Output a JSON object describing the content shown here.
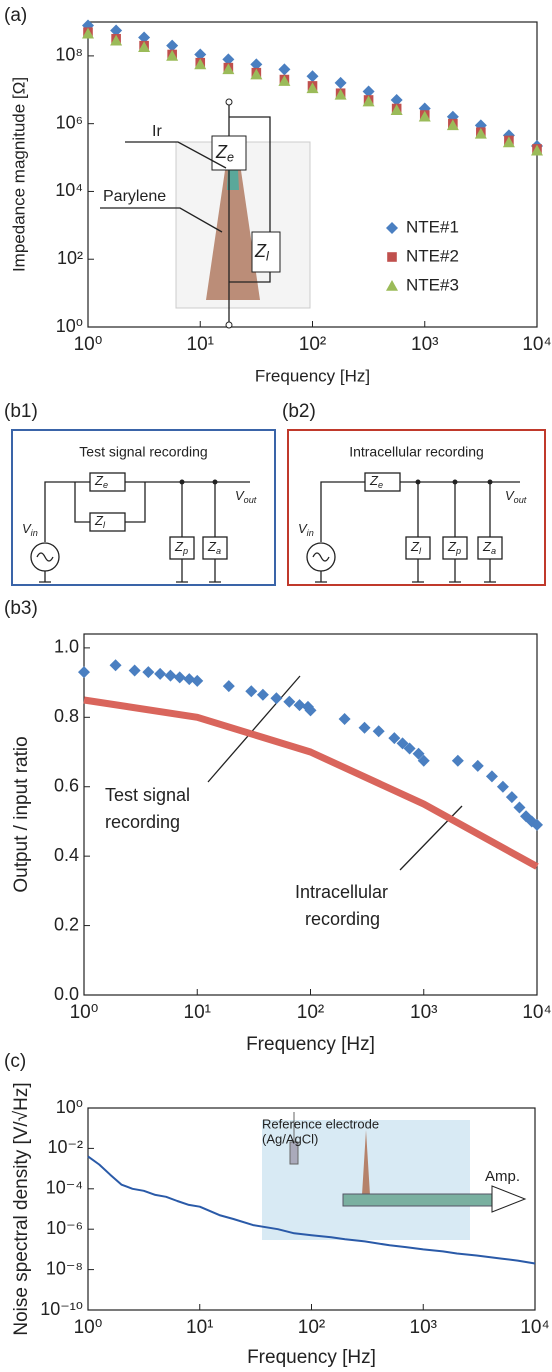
{
  "panel_labels": [
    "(a)",
    "(b1)",
    "(b2)",
    "(b3)",
    "(c)"
  ],
  "chart_data": [
    {
      "type": "scatter",
      "xlabel": "Frequency [Hz]",
      "ylabel": "Impedance magnitude [Ω]",
      "xscale": "log",
      "yscale": "log",
      "xlim": [
        1,
        10000
      ],
      "ylim": [
        1,
        1000000000
      ],
      "xticks": [
        {
          "value": 1,
          "label": "10⁰"
        },
        {
          "value": 10,
          "label": "10¹"
        },
        {
          "value": 100,
          "label": "10²"
        },
        {
          "value": 1000,
          "label": "10³"
        },
        {
          "value": 10000,
          "label": "10⁴"
        }
      ],
      "yticks": [
        {
          "value": 1,
          "label": "10⁰"
        },
        {
          "value": 100,
          "label": "10²"
        },
        {
          "value": 10000,
          "label": "10⁴"
        },
        {
          "value": 1000000,
          "label": "10⁶"
        },
        {
          "value": 100000000,
          "label": "10⁸"
        }
      ],
      "legend": "lower right",
      "x": [
        1,
        1.78,
        3.16,
        5.62,
        10,
        17.8,
        31.6,
        56.2,
        100,
        178,
        316,
        562,
        1000,
        1780,
        3160,
        5620,
        10000
      ],
      "series": [
        {
          "name": "NTE#1",
          "color": "#4a7fc1",
          "marker": "diamond",
          "values": [
            790000000.0,
            560000000.0,
            350000000.0,
            200000000.0,
            110000000.0,
            79000000.0,
            56000000.0,
            40000000.0,
            25000000.0,
            16000000.0,
            8900000.0,
            5000000.0,
            2800000.0,
            1600000.0,
            890000.0,
            450000.0,
            220000.0
          ]
        },
        {
          "name": "NTE#2",
          "color": "#c0504d",
          "marker": "square",
          "values": [
            500000000.0,
            320000000.0,
            200000000.0,
            110000000.0,
            63000000.0,
            45000000.0,
            32000000.0,
            20000000.0,
            13000000.0,
            7900000.0,
            5000000.0,
            2800000.0,
            1800000.0,
            1000000.0,
            560000.0,
            320000.0,
            180000.0
          ]
        },
        {
          "name": "NTE#3",
          "color": "#9bbb59",
          "marker": "triangle",
          "values": [
            450000000.0,
            280000000.0,
            180000000.0,
            100000000.0,
            56000000.0,
            40000000.0,
            28000000.0,
            18000000.0,
            11000000.0,
            7100000.0,
            4500000.0,
            2500000.0,
            1600000.0,
            890000.0,
            500000.0,
            280000.0,
            160000.0
          ]
        }
      ],
      "inset": {
        "ir": "Ir",
        "parylene": "Parylene",
        "ze": {
          "base": "Z",
          "sub": "e"
        },
        "zl": {
          "base": "Z",
          "sub": "l"
        }
      }
    },
    {
      "type": "line",
      "xlabel": "Frequency [Hz]",
      "ylabel": "Output / input ratio",
      "xscale": "log",
      "yscale": "linear",
      "xlim": [
        1,
        10000
      ],
      "ylim": [
        0,
        1.04
      ],
      "xticks": [
        {
          "value": 1,
          "label": "10⁰"
        },
        {
          "value": 10,
          "label": "10¹"
        },
        {
          "value": 100,
          "label": "10²"
        },
        {
          "value": 1000,
          "label": "10³"
        },
        {
          "value": 10000,
          "label": "10⁴"
        }
      ],
      "yticks": [
        {
          "value": 0,
          "label": "0.0"
        },
        0.2,
        0.4,
        0.6,
        0.8,
        {
          "value": 1,
          "label": "1.0"
        }
      ],
      "series": [
        {
          "color": "#4a7fc1",
          "marker": "diamond",
          "x": [
            1,
            1.9,
            2.8,
            3.7,
            4.7,
            5.8,
            7,
            8.5,
            10,
            19,
            30,
            38,
            50,
            65,
            80,
            95,
            100,
            200,
            300,
            400,
            550,
            650,
            750,
            900,
            1000,
            2000,
            3000,
            4000,
            5000,
            6000,
            7000,
            8000,
            9000,
            10000
          ],
          "values": [
            0.93,
            0.95,
            0.935,
            0.93,
            0.925,
            0.92,
            0.915,
            0.91,
            0.905,
            0.89,
            0.875,
            0.865,
            0.855,
            0.845,
            0.835,
            0.83,
            0.82,
            0.795,
            0.77,
            0.76,
            0.74,
            0.725,
            0.71,
            0.695,
            0.675,
            0.675,
            0.66,
            0.63,
            0.6,
            0.57,
            0.54,
            0.515,
            0.5,
            0.49
          ]
        },
        {
          "color": "#d9655c",
          "marker": "line",
          "x": [
            1,
            10,
            100,
            1000,
            10000
          ],
          "values": [
            0.85,
            0.8,
            0.7,
            0.55,
            0.37
          ]
        }
      ],
      "annotations": [
        [
          "Test signal",
          "recording"
        ],
        [
          "Intracellular",
          "recording"
        ]
      ]
    },
    {
      "type": "line",
      "xlabel": "Frequency [Hz]",
      "ylabel": "Noise spectral density [V/√Hz]",
      "xscale": "log",
      "yscale": "log",
      "xlim": [
        1,
        10000
      ],
      "ylim": [
        1e-10,
        1
      ],
      "xticks": [
        {
          "value": 1,
          "label": "10⁰"
        },
        {
          "value": 10,
          "label": "10¹"
        },
        {
          "value": 100,
          "label": "10²"
        },
        {
          "value": 1000,
          "label": "10³"
        },
        {
          "value": 10000,
          "label": "10⁴"
        }
      ],
      "yticks": [
        {
          "value": 1e-10,
          "label": "10⁻¹⁰"
        },
        {
          "value": 1e-08,
          "label": "10⁻⁸"
        },
        {
          "value": 1e-06,
          "label": "10⁻⁶"
        },
        {
          "value": 0.0001,
          "label": "10⁻⁴"
        },
        {
          "value": 0.01,
          "label": "10⁻²"
        },
        {
          "value": 1,
          "label": "10⁰"
        }
      ],
      "series": [
        {
          "color": "#2a5aa8",
          "marker": "line",
          "x": [
            1,
            1.26,
            1.58,
            2,
            2.5,
            3.16,
            4,
            5,
            6.3,
            8,
            10,
            15,
            20,
            30,
            50,
            70,
            100,
            150,
            200,
            300,
            500,
            700,
            1000,
            1500,
            2000,
            3000,
            5000,
            7000,
            10000
          ],
          "values": [
            0.004,
            0.0016,
            0.0005,
            0.00016,
            0.0001,
            8e-05,
            5e-05,
            4e-05,
            2.5e-05,
            1.6e-05,
            1.3e-05,
            5e-06,
            3.2e-06,
            1.6e-06,
            1e-06,
            6.3e-07,
            5e-07,
            4e-07,
            3.2e-07,
            2.5e-07,
            1.6e-07,
            1.3e-07,
            1e-07,
            8e-08,
            6.3e-08,
            5e-08,
            3.5e-08,
            2.8e-08,
            2e-08
          ]
        }
      ],
      "inset": {
        "ref": [
          "Reference electrode",
          "(Ag/AgCl)"
        ],
        "amp": "Amp."
      }
    }
  ],
  "circuits": [
    {
      "title": "Test signal recording",
      "vin": {
        "base": "V",
        "sub": "in"
      },
      "vout": {
        "base": "V",
        "sub": "out"
      },
      "ze": {
        "base": "Z",
        "sub": "e"
      },
      "zl": {
        "base": "Z",
        "sub": "l"
      },
      "zp": {
        "base": "Z",
        "sub": "p"
      },
      "za": {
        "base": "Z",
        "sub": "a"
      }
    },
    {
      "title": "Intracellular recording",
      "vin": {
        "base": "V",
        "sub": "in"
      },
      "vout": {
        "base": "V",
        "sub": "out"
      },
      "ze": {
        "base": "Z",
        "sub": "e"
      },
      "zl": {
        "base": "Z",
        "sub": "l"
      },
      "zp": {
        "base": "Z",
        "sub": "p"
      },
      "za": {
        "base": "Z",
        "sub": "a"
      }
    }
  ]
}
